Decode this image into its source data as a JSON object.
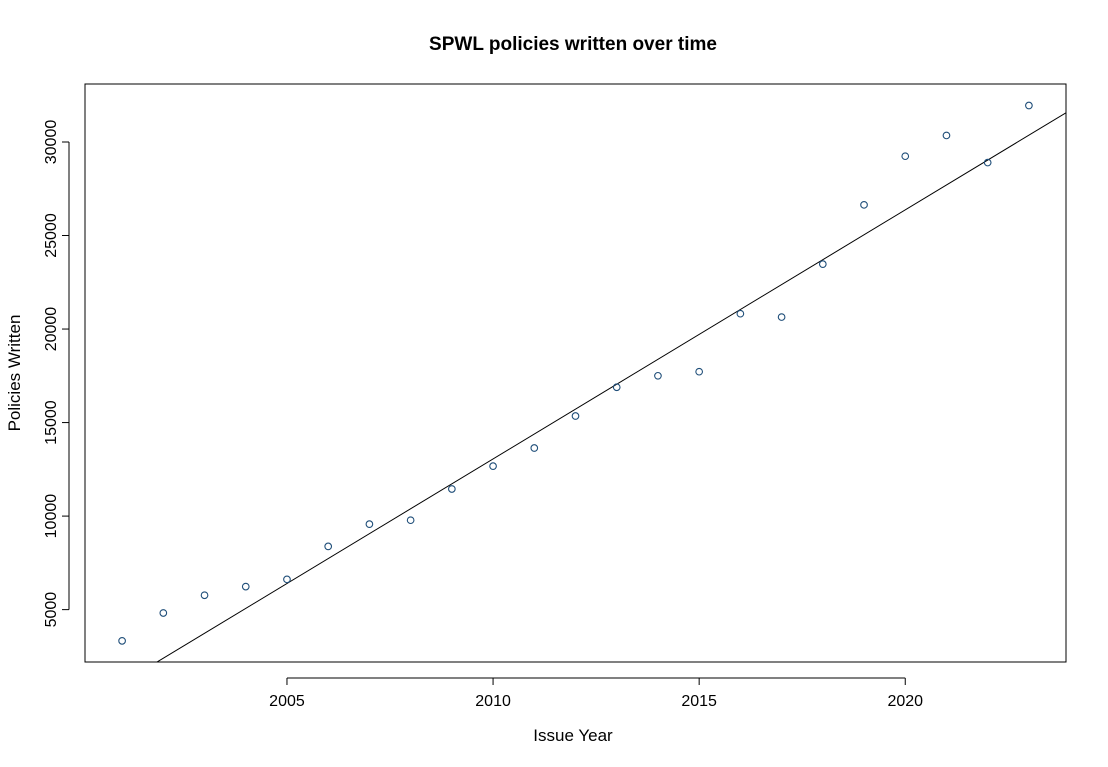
{
  "chart_data": {
    "type": "scatter",
    "title": "SPWL policies written over time",
    "xlabel": "Issue Year",
    "ylabel": "Policies Written",
    "xlim": [
      2000.1,
      2023.9
    ],
    "ylim": [
      2200,
      33100
    ],
    "x_ticks": [
      2005,
      2010,
      2015,
      2020
    ],
    "x_tick_labels": [
      "2005",
      "2010",
      "2015",
      "2020"
    ],
    "y_ticks": [
      5000,
      10000,
      15000,
      20000,
      25000,
      30000
    ],
    "y_tick_labels": [
      "5000",
      "10000",
      "15000",
      "20000",
      "25000",
      "30000"
    ],
    "grid": false,
    "legend": "none",
    "x": [
      2001,
      2002,
      2003,
      2004,
      2005,
      2006,
      2007,
      2008,
      2009,
      2010,
      2011,
      2012,
      2013,
      2014,
      2015,
      2016,
      2017,
      2018,
      2019,
      2020,
      2021,
      2022,
      2023
    ],
    "y": [
      3330,
      4820,
      5770,
      6230,
      6620,
      8380,
      9570,
      9780,
      11450,
      12670,
      13640,
      15350,
      16890,
      17500,
      17720,
      20820,
      20640,
      23470,
      26640,
      29240,
      30350,
      28900,
      31950
    ],
    "fit_line": {
      "slope": 1331.5,
      "intercept": -2663260
    },
    "colors": {
      "points": "#1f4e79",
      "line": "#000000",
      "frame": "#000000"
    }
  }
}
